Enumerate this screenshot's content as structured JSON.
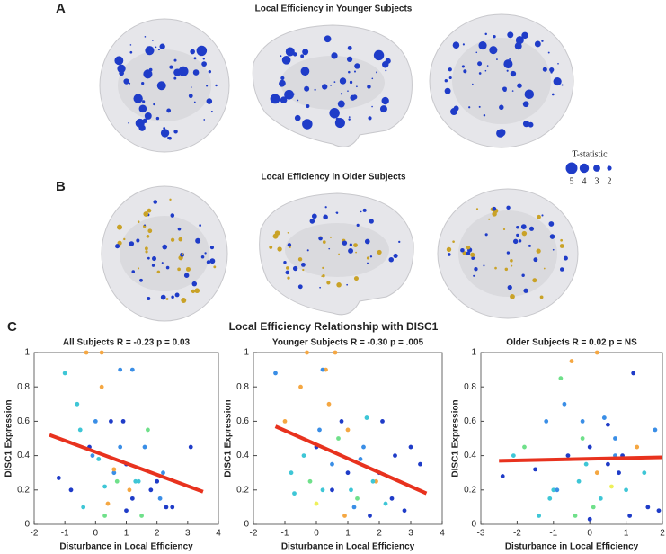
{
  "figure": {
    "panel_a": {
      "label": "A",
      "title": "Local Efficiency in Younger Subjects"
    },
    "panel_b": {
      "label": "B",
      "title": "Local Efficiency in Older Subjects"
    },
    "panel_c": {
      "label": "C",
      "title": "Local Efficiency Relationship with DISC1"
    },
    "legend": {
      "title": "T-statistic",
      "sizes": [
        5,
        4,
        3,
        2
      ],
      "color": "#1f3cc8"
    }
  },
  "chart_data": [
    {
      "type": "scatter",
      "title": "All Subjects R = -0.23 p = 0.03",
      "xlabel": "Disturbance in Local Efficiency",
      "ylabel": "DISC1 Expression",
      "xlim": [
        -2,
        4
      ],
      "ylim": [
        0,
        1
      ],
      "xticks": [
        -2,
        -1,
        0,
        1,
        2,
        3,
        4
      ],
      "yticks": [
        0,
        0.2,
        0.4,
        0.6,
        0.8,
        1
      ],
      "x": [
        -1.2,
        -1,
        -0.8,
        -0.5,
        -0.3,
        -0.2,
        0,
        0.1,
        0.2,
        0.3,
        0.5,
        0.6,
        0.7,
        0.8,
        1,
        1.1,
        1.2,
        1.3,
        1.5,
        1.6,
        1.8,
        2,
        2.1,
        2.3,
        2.5,
        3.1,
        -0.1,
        0.4,
        0.9,
        1.4,
        0.2,
        0.8,
        1.2,
        -0.4,
        0.6,
        1.7,
        0.3,
        1.0,
        -0.6,
        2.2
      ],
      "y": [
        0.27,
        0.88,
        0.2,
        0.55,
        1.0,
        0.45,
        0.6,
        0.38,
        1.0,
        0.05,
        0.6,
        0.3,
        0.25,
        0.9,
        0.35,
        0.2,
        0.15,
        0.25,
        0.05,
        0.45,
        0.2,
        0.25,
        0.15,
        0.1,
        0.1,
        0.45,
        0.4,
        0.12,
        0.6,
        0.25,
        0.8,
        0.45,
        0.9,
        0.1,
        0.32,
        0.55,
        0.22,
        0.08,
        0.7,
        0.3
      ],
      "colors": [
        "#1f3cc8",
        "#3ec6d6",
        "#1f3cc8",
        "#3ec6d6",
        "#f5a742",
        "#1f3cc8",
        "#3a8ee6",
        "#3ec6d6",
        "#f5a742",
        "#6fe08a",
        "#1f3cc8",
        "#3a8ee6",
        "#6fe08a",
        "#3a8ee6",
        "#1f3cc8",
        "#f5a742",
        "#1f3cc8",
        "#3ec6d6",
        "#6fe08a",
        "#3a8ee6",
        "#1f3cc8",
        "#1f3cc8",
        "#3a8ee6",
        "#1f3cc8",
        "#1f3cc8",
        "#1f3cc8",
        "#3a8ee6",
        "#f5a742",
        "#1f3cc8",
        "#3ec6d6",
        "#f5a742",
        "#3a8ee6",
        "#3a8ee6",
        "#3ec6d6",
        "#f5a742",
        "#6fe08a",
        "#3ec6d6",
        "#1f3cc8",
        "#3ec6d6",
        "#3a8ee6"
      ],
      "fit": {
        "x": [
          -1.5,
          3.5
        ],
        "y": [
          0.52,
          0.19
        ],
        "color": "#e8321e"
      }
    },
    {
      "type": "scatter",
      "title": "Younger Subjects R = -0.30 p = .005",
      "xlabel": "Disturbance in Local Efficiency",
      "ylabel": "DISC1 Expression",
      "xlim": [
        -2,
        4
      ],
      "ylim": [
        0,
        1
      ],
      "xticks": [
        -2,
        -1,
        0,
        1,
        2,
        3,
        4
      ],
      "yticks": [
        0,
        0.2,
        0.4,
        0.6,
        0.8,
        1
      ],
      "x": [
        -1.3,
        -1,
        -0.7,
        -0.5,
        -0.3,
        0,
        0.1,
        0.3,
        0.5,
        0.6,
        0.8,
        1,
        1.1,
        1.3,
        1.5,
        1.7,
        1.9,
        2,
        2.2,
        2.5,
        2.8,
        3.3,
        0.2,
        0.7,
        1.2,
        -0.2,
        0.4,
        1.6,
        2.4,
        0.9,
        0.0,
        1.4,
        -0.8,
        0.5,
        3.0,
        1.8,
        0.2,
        1.0,
        2.1,
        -0.4
      ],
      "y": [
        0.88,
        0.6,
        0.18,
        0.8,
        1.0,
        0.45,
        0.55,
        0.9,
        0.35,
        1.0,
        0.6,
        0.3,
        0.2,
        0.15,
        0.45,
        0.05,
        0.25,
        0.3,
        0.12,
        0.4,
        0.08,
        0.35,
        0.2,
        0.5,
        0.1,
        0.25,
        0.7,
        0.62,
        0.15,
        0.05,
        0.12,
        0.38,
        0.3,
        0.2,
        0.45,
        0.25,
        0.9,
        0.55,
        0.6,
        0.4
      ],
      "colors": [
        "#3a8ee6",
        "#f5a742",
        "#3ec6d6",
        "#f5a742",
        "#f5a742",
        "#1f3cc8",
        "#3a8ee6",
        "#f5a742",
        "#3a8ee6",
        "#f5a742",
        "#1f3cc8",
        "#1f3cc8",
        "#3ec6d6",
        "#6fe08a",
        "#3a8ee6",
        "#1f3cc8",
        "#f5a742",
        "#1f3cc8",
        "#3ec6d6",
        "#1f3cc8",
        "#1f3cc8",
        "#1f3cc8",
        "#3ec6d6",
        "#6fe08a",
        "#3a8ee6",
        "#6fe08a",
        "#f5a742",
        "#3ec6d6",
        "#1f3cc8",
        "#f5a742",
        "#eef05a",
        "#3a8ee6",
        "#3ec6d6",
        "#1f3cc8",
        "#1f3cc8",
        "#3ec6d6",
        "#3a8ee6",
        "#f5a742",
        "#1f3cc8",
        "#3ec6d6"
      ],
      "fit": {
        "x": [
          -1.3,
          3.5
        ],
        "y": [
          0.57,
          0.18
        ],
        "color": "#e8321e"
      }
    },
    {
      "type": "scatter",
      "title": "Older Subjects R = 0.02 p = NS",
      "xlabel": "Disturbance in Local Efficiency",
      "ylabel": "DISC1 Expression",
      "xlim": [
        -3,
        2
      ],
      "ylim": [
        0,
        1
      ],
      "xticks": [
        -3,
        -2,
        -1,
        0,
        1,
        2
      ],
      "yticks": [
        0,
        0.2,
        0.4,
        0.6,
        0.8,
        1
      ],
      "x": [
        -2.4,
        -2.1,
        -1.8,
        -1.5,
        -1.2,
        -1,
        -0.8,
        -0.6,
        -0.5,
        -0.3,
        -0.2,
        0,
        0.1,
        0.2,
        0.4,
        0.5,
        0.7,
        0.9,
        1,
        1.2,
        1.5,
        1.8,
        1.9,
        -0.4,
        0.3,
        -0.7,
        0.6,
        -1.4,
        0.8,
        1.3,
        -0.1,
        0.0,
        -0.9,
        0.5,
        1.6,
        -0.2,
        0.2,
        -1.1,
        1.1,
        0.7
      ],
      "y": [
        0.28,
        0.4,
        0.45,
        0.32,
        0.6,
        0.2,
        0.85,
        0.4,
        0.95,
        0.25,
        0.6,
        0.45,
        0.1,
        1.0,
        0.62,
        0.35,
        0.5,
        0.4,
        0.2,
        0.88,
        0.3,
        0.55,
        0.08,
        0.05,
        0.15,
        0.7,
        0.22,
        0.05,
        0.3,
        0.45,
        0.35,
        0.03,
        0.2,
        0.58,
        0.1,
        0.5,
        0.3,
        0.15,
        0.05,
        0.4
      ],
      "colors": [
        "#1f3cc8",
        "#3ec6d6",
        "#6fe08a",
        "#1f3cc8",
        "#3a8ee6",
        "#3ec6d6",
        "#6fe08a",
        "#1f3cc8",
        "#f5a742",
        "#3ec6d6",
        "#3a8ee6",
        "#1f3cc8",
        "#6fe08a",
        "#f5a742",
        "#3a8ee6",
        "#1f3cc8",
        "#3a8ee6",
        "#1f3cc8",
        "#3ec6d6",
        "#1f3cc8",
        "#3ec6d6",
        "#3a8ee6",
        "#1f3cc8",
        "#6fe08a",
        "#3ec6d6",
        "#3a8ee6",
        "#eef05a",
        "#3ec6d6",
        "#1f3cc8",
        "#f5a742",
        "#3ec6d6",
        "#1f3cc8",
        "#3a8ee6",
        "#1f3cc8",
        "#1f3cc8",
        "#6fe08a",
        "#f5a742",
        "#3ec6d6",
        "#1f3cc8",
        "#3a8ee6"
      ],
      "fit": {
        "x": [
          -2.5,
          2
        ],
        "y": [
          0.37,
          0.39
        ],
        "color": "#e8321e"
      }
    }
  ]
}
